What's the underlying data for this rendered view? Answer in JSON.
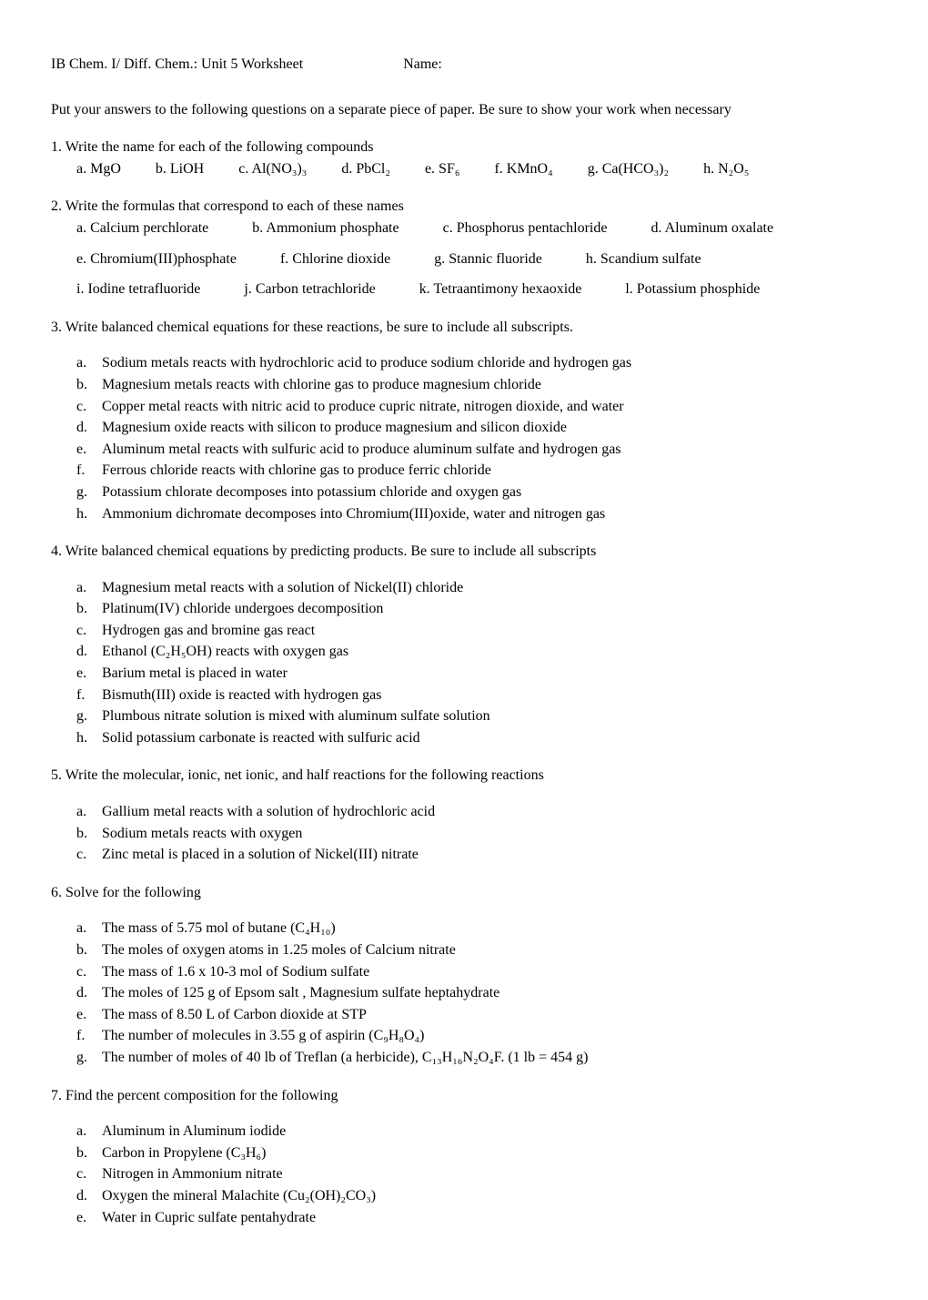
{
  "header": {
    "title": "IB Chem. I/ Diff. Chem.:  Unit 5 Worksheet",
    "name_label": "Name:"
  },
  "intro": "Put your answers to the following questions on a separate piece of paper.  Be sure to show your work when necessary",
  "q1": {
    "text": "1. Write the name for each of the following compounds",
    "items": [
      "a. MgO",
      "b. LiOH",
      "c. Al(NO₃)₃",
      "d. PbCl₂",
      "e. SF₆",
      "f. KMnO₄",
      "g. Ca(HCO₃)₂",
      "h. N₂O₅"
    ]
  },
  "q2": {
    "text": "2. Write the formulas that correspond to each of these names",
    "rows": [
      [
        "a. Calcium perchlorate",
        "b. Ammonium phosphate",
        "c. Phosphorus pentachloride",
        "d. Aluminum oxalate"
      ],
      [
        "e. Chromium(III)phosphate",
        "f. Chlorine dioxide",
        "g. Stannic fluoride",
        "h. Scandium sulfate"
      ],
      [
        "i. Iodine tetrafluoride",
        "j. Carbon tetrachloride",
        "k. Tetraantimony hexaoxide",
        "l. Potassium phosphide"
      ]
    ]
  },
  "q3": {
    "text": "3. Write balanced chemical equations for these reactions, be sure to include all subscripts.",
    "items": [
      [
        "a.",
        "Sodium metals reacts with hydrochloric acid to produce sodium chloride and hydrogen gas"
      ],
      [
        "b.",
        "Magnesium metals reacts with chlorine gas to produce magnesium chloride"
      ],
      [
        "c.",
        "Copper metal reacts with nitric acid to produce cupric nitrate, nitrogen dioxide, and water"
      ],
      [
        "d.",
        "Magnesium oxide reacts with silicon to produce magnesium and silicon dioxide"
      ],
      [
        "e.",
        "Aluminum metal reacts with sulfuric acid to produce aluminum sulfate and hydrogen gas"
      ],
      [
        "f.",
        "Ferrous chloride reacts with chlorine gas to produce ferric chloride"
      ],
      [
        "g.",
        "Potassium chlorate decomposes into potassium chloride and oxygen gas"
      ],
      [
        "h.",
        "Ammonium dichromate decomposes into Chromium(III)oxide, water and nitrogen gas"
      ]
    ]
  },
  "q4": {
    "text": "4. Write balanced chemical equations by predicting products. Be sure to include all subscripts",
    "items": [
      [
        "a.",
        "Magnesium metal reacts with a solution of Nickel(II) chloride"
      ],
      [
        "b.",
        "Platinum(IV) chloride undergoes decomposition"
      ],
      [
        "c.",
        "Hydrogen gas and bromine gas react"
      ],
      [
        "d.",
        "Ethanol (C₂H₅OH) reacts with oxygen gas"
      ],
      [
        "e.",
        "Barium metal is placed in water"
      ],
      [
        "f.",
        "Bismuth(III) oxide is reacted with hydrogen gas"
      ],
      [
        "g.",
        "Plumbous nitrate solution is mixed with aluminum sulfate solution"
      ],
      [
        "h.",
        "Solid potassium carbonate is reacted with sulfuric acid"
      ]
    ]
  },
  "q5": {
    "text": "5. Write the molecular, ionic, net ionic, and half reactions for the following reactions",
    "items": [
      [
        "a.",
        "Gallium metal reacts with a solution of hydrochloric acid"
      ],
      [
        "b.",
        "Sodium metals reacts with oxygen"
      ],
      [
        "c.",
        "Zinc metal is placed in a solution of Nickel(III) nitrate"
      ]
    ]
  },
  "q6": {
    "text": "6. Solve for the following",
    "items": [
      [
        "a.",
        "The mass of 5.75 mol of butane (C₄H₁₀)"
      ],
      [
        "b.",
        "The moles of oxygen atoms in 1.25 moles of Calcium nitrate"
      ],
      [
        "c.",
        "The mass of 1.6 x 10-3 mol of Sodium sulfate"
      ],
      [
        "d.",
        "The moles of 125 g of Epsom salt , Magnesium sulfate heptahydrate"
      ],
      [
        "e.",
        "The mass of 8.50 L of Carbon dioxide at STP"
      ],
      [
        "f.",
        "The number of molecules in 3.55 g of aspirin (C₉H₈O₄)"
      ],
      [
        "g.",
        "The number of moles of 40 lb of Treflan (a herbicide), C₁₃H₁₆N₂O₄F.  (1 lb = 454 g)"
      ]
    ]
  },
  "q7": {
    "text": "7. Find the percent composition for the following",
    "items": [
      [
        "a.",
        "Aluminum in Aluminum iodide"
      ],
      [
        "b.",
        "Carbon in Propylene (C₃H₆)"
      ],
      [
        "c.",
        "Nitrogen in Ammonium nitrate"
      ],
      [
        "d.",
        "Oxygen the mineral Malachite (Cu₂(OH)₂CO₃)"
      ],
      [
        "e.",
        "Water in Cupric sulfate pentahydrate"
      ]
    ]
  }
}
